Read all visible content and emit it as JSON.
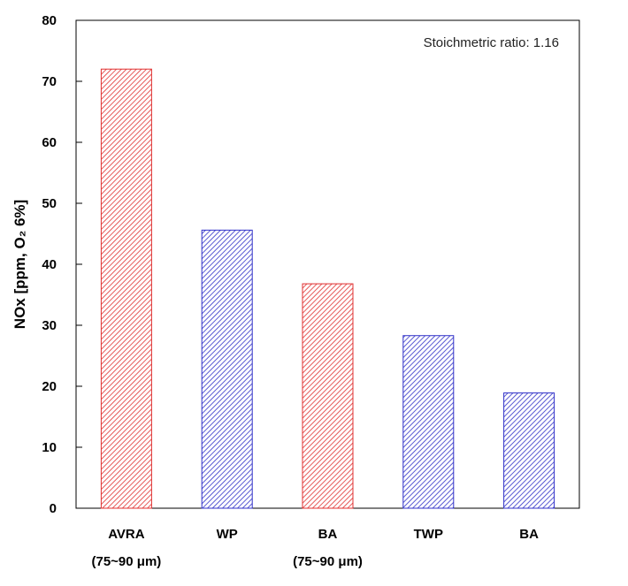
{
  "chart_data": {
    "type": "bar",
    "categories": [
      "AVRA",
      "WP",
      "BA",
      "TWP",
      "BA"
    ],
    "category_sublabels": [
      "(75~90 μm)",
      "",
      "(75~90 μm)",
      "",
      ""
    ],
    "values": [
      72,
      45.6,
      36.8,
      28.3,
      18.9
    ],
    "bar_colors": [
      "#e03030",
      "#3030c8",
      "#e03030",
      "#3030c8",
      "#3030c8"
    ],
    "ylabel": "NOx [ppm, O₂ 6%]",
    "xlabel": "",
    "title": "",
    "ylim": [
      0,
      80
    ],
    "yticks": [
      0,
      10,
      20,
      30,
      40,
      50,
      60,
      70,
      80
    ],
    "annotation": "Stoichmetric ratio: 1.16",
    "annotation_placement": "top-right",
    "grid": false,
    "legend": "none",
    "bar_fill": "diagonal-hatch"
  }
}
